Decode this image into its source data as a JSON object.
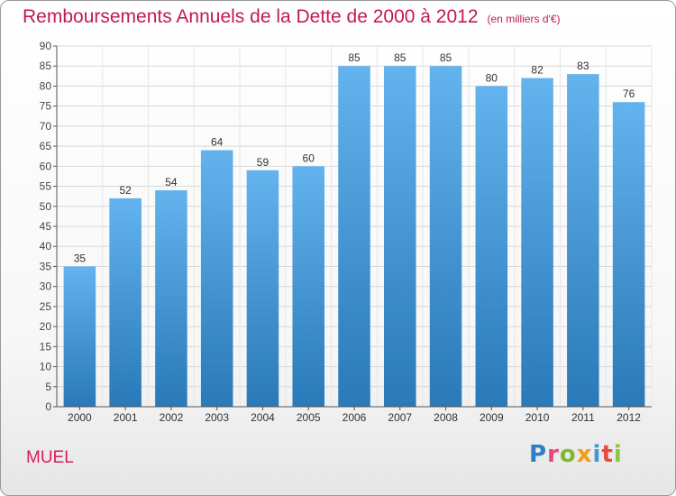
{
  "chart_title": "Remboursements Annuels de la Dette de 2000 à 2012",
  "chart_unit": "(en milliers d'€)",
  "commune_name": "MUEL",
  "logo_text": "Proxiti",
  "colors": {
    "title": "#c2185b",
    "bar_top": "#63b3ee",
    "bar_bottom": "#2a79b8",
    "logo_letters": [
      "#2f7fc4",
      "#e2497b",
      "#7dba34",
      "#f39c12",
      "#3a9bd6",
      "#e74c3c",
      "#8dc63f"
    ]
  },
  "chart_data": {
    "type": "bar",
    "title": "Remboursements Annuels de la Dette de 2000 à 2012",
    "subtitle": "(en milliers d'€)",
    "xlabel": "",
    "ylabel": "",
    "categories": [
      "2000",
      "2001",
      "2002",
      "2003",
      "2004",
      "2005",
      "2006",
      "2007",
      "2008",
      "2009",
      "2010",
      "2011",
      "2012"
    ],
    "values": [
      35,
      52,
      54,
      64,
      59,
      60,
      85,
      85,
      85,
      80,
      82,
      83,
      76
    ],
    "ylim": [
      0,
      90
    ],
    "yticks": [
      0,
      5,
      10,
      15,
      20,
      25,
      30,
      35,
      40,
      45,
      50,
      55,
      60,
      65,
      70,
      75,
      80,
      85,
      90
    ],
    "grid": true,
    "legend": "none"
  }
}
